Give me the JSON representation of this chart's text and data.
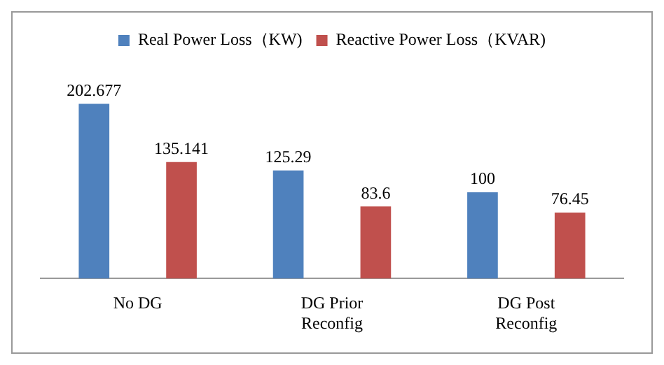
{
  "chart_data": {
    "type": "bar",
    "categories": [
      "No DG",
      "DG Prior\nReconfig",
      "DG Post\nReconfig"
    ],
    "series": [
      {
        "name": "Real Power Loss（KW)",
        "color": "#4f81bd",
        "values": [
          202.677,
          125.29,
          100
        ]
      },
      {
        "name": "Reactive Power Loss（KVAR)",
        "color": "#c0504d",
        "values": [
          135.141,
          83.6,
          76.45
        ]
      }
    ],
    "data_labels": true,
    "legend": "top",
    "grid": false,
    "tick_labels": "x"
  }
}
